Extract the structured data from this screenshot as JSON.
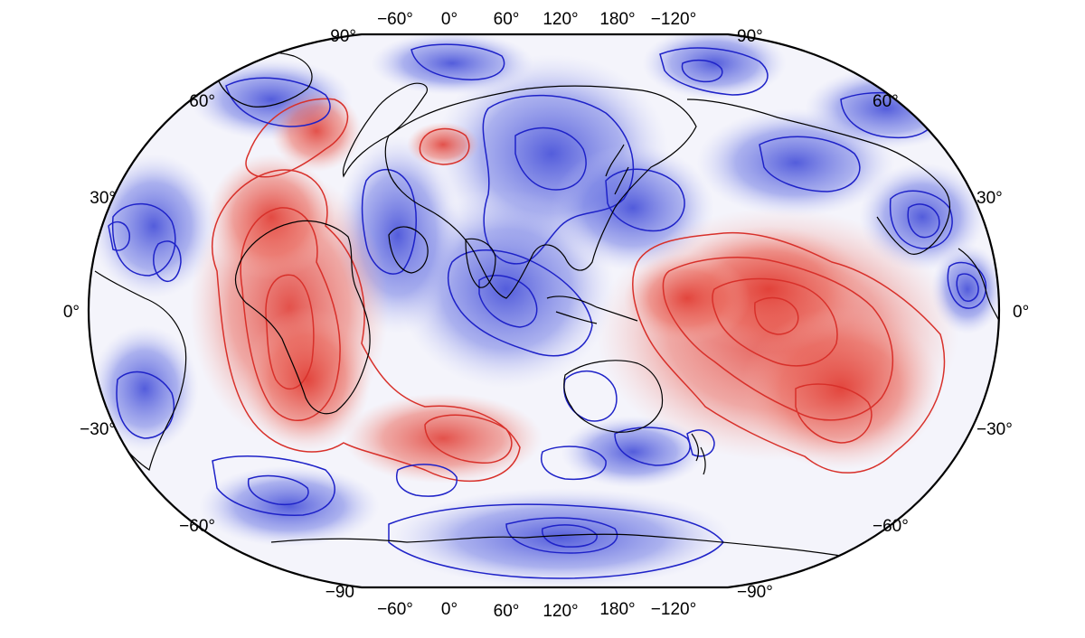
{
  "projection": "Robinson (Pacific-centred, central meridian 150°E)",
  "colormap": {
    "positive": "#e2443a",
    "negative": "#3a48d8",
    "neutral": "#ffffff",
    "positive_contour": "#d8302a",
    "negative_contour": "#1e22c8",
    "coastline": "#000000"
  },
  "grid": false,
  "top_lon_labels": [
    "−60°",
    "0°",
    "60°",
    "120°",
    "180°",
    "−120°"
  ],
  "bottom_lon_labels": [
    "−60°",
    "0°",
    "60°",
    "120°",
    "180°",
    "−120°"
  ],
  "left_lat_labels": [
    "90°",
    "60°",
    "30°",
    "0°",
    "−30°",
    "−60°",
    "−90"
  ],
  "right_lat_labels": [
    "90°",
    "60°",
    "30°",
    "0°",
    "−30°",
    "−60°",
    "−90°"
  ],
  "anomaly_regions": {
    "positive": [
      "Africa and South Atlantic",
      "Central and South Pacific"
    ],
    "negative": [
      "Eurasia and Indian Ocean",
      "Western Pacific margin",
      "Antarctica",
      "North and South America margins"
    ]
  }
}
